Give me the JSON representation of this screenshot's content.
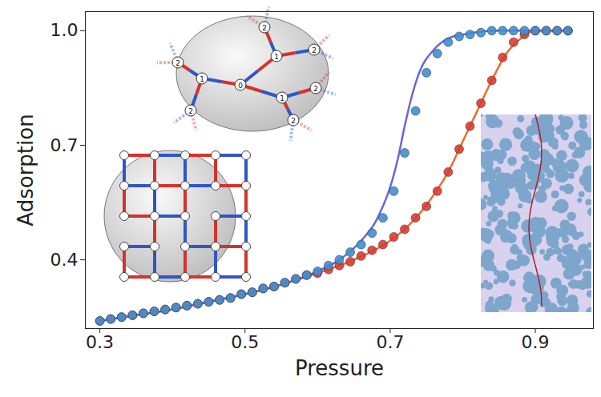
{
  "chart_data": {
    "type": "scatter",
    "x_label": "Pressure",
    "y_label": "Adsorption",
    "xlim": [
      0.28,
      0.98
    ],
    "ylim": [
      0.22,
      1.05
    ],
    "xticks": [
      0.3,
      0.5,
      0.7,
      0.9
    ],
    "yticks": [
      0.4,
      0.7,
      {
        "value": 1,
        "label": "1.0"
      }
    ],
    "annotations": [
      "0",
      "1",
      "2"
    ],
    "series": [
      {
        "type": "line",
        "color": "#e8702a",
        "line_style": "solid",
        "x": [
          0.3,
          0.35,
          0.4,
          0.45,
          0.5,
          0.55,
          0.6,
          0.65,
          0.7,
          0.72,
          0.74,
          0.76,
          0.78,
          0.8,
          0.82,
          0.84,
          0.86,
          0.88,
          0.9,
          0.95
        ],
        "values": [
          0.24,
          0.255,
          0.27,
          0.29,
          0.31,
          0.335,
          0.365,
          0.4,
          0.45,
          0.48,
          0.52,
          0.57,
          0.63,
          0.71,
          0.79,
          0.87,
          0.94,
          0.98,
          1,
          1
        ]
      },
      {
        "type": "line",
        "color": "#6a66d6",
        "line_style": "solid",
        "x": [
          0.3,
          0.35,
          0.4,
          0.45,
          0.5,
          0.55,
          0.6,
          0.63,
          0.66,
          0.68,
          0.69,
          0.7,
          0.71,
          0.72,
          0.73,
          0.74,
          0.76,
          0.78,
          0.8,
          0.85,
          0.9,
          0.95
        ],
        "values": [
          0.24,
          0.255,
          0.27,
          0.29,
          0.31,
          0.335,
          0.37,
          0.4,
          0.45,
          0.5,
          0.54,
          0.59,
          0.66,
          0.75,
          0.83,
          0.89,
          0.95,
          0.98,
          0.99,
          1,
          1,
          1
        ]
      },
      {
        "type": "scatter",
        "color": "#e2392e",
        "marker": "circle",
        "x": [
          0.3,
          0.315,
          0.33,
          0.345,
          0.36,
          0.375,
          0.39,
          0.405,
          0.42,
          0.435,
          0.45,
          0.465,
          0.48,
          0.495,
          0.51,
          0.525,
          0.54,
          0.555,
          0.57,
          0.585,
          0.6,
          0.615,
          0.63,
          0.645,
          0.66,
          0.675,
          0.69,
          0.705,
          0.72,
          0.735,
          0.75,
          0.765,
          0.78,
          0.795,
          0.81,
          0.825,
          0.84,
          0.855,
          0.87,
          0.885,
          0.9,
          0.915,
          0.93,
          0.945
        ],
        "values": [
          0.24,
          0.245,
          0.25,
          0.255,
          0.26,
          0.265,
          0.27,
          0.275,
          0.28,
          0.285,
          0.29,
          0.295,
          0.3,
          0.31,
          0.315,
          0.325,
          0.33,
          0.34,
          0.35,
          0.36,
          0.365,
          0.375,
          0.385,
          0.395,
          0.41,
          0.425,
          0.44,
          0.46,
          0.48,
          0.51,
          0.54,
          0.58,
          0.63,
          0.69,
          0.75,
          0.81,
          0.87,
          0.93,
          0.97,
          0.99,
          1,
          1,
          1,
          1
        ]
      },
      {
        "type": "scatter",
        "color": "#3f8fd0",
        "marker": "circle",
        "x": [
          0.3,
          0.315,
          0.33,
          0.345,
          0.36,
          0.375,
          0.39,
          0.405,
          0.42,
          0.435,
          0.45,
          0.465,
          0.48,
          0.495,
          0.51,
          0.525,
          0.54,
          0.555,
          0.57,
          0.585,
          0.6,
          0.615,
          0.63,
          0.645,
          0.66,
          0.675,
          0.69,
          0.705,
          0.72,
          0.735,
          0.75,
          0.765,
          0.78,
          0.795,
          0.81,
          0.825,
          0.84,
          0.855,
          0.87,
          0.885,
          0.9,
          0.915,
          0.93,
          0.945
        ],
        "values": [
          0.24,
          0.245,
          0.25,
          0.255,
          0.26,
          0.265,
          0.27,
          0.275,
          0.28,
          0.285,
          0.29,
          0.295,
          0.3,
          0.31,
          0.315,
          0.325,
          0.33,
          0.34,
          0.35,
          0.36,
          0.37,
          0.385,
          0.4,
          0.42,
          0.44,
          0.47,
          0.51,
          0.58,
          0.68,
          0.79,
          0.89,
          0.94,
          0.97,
          0.985,
          0.99,
          0.995,
          1,
          1,
          1,
          1,
          1,
          1,
          1,
          1
        ]
      }
    ]
  }
}
